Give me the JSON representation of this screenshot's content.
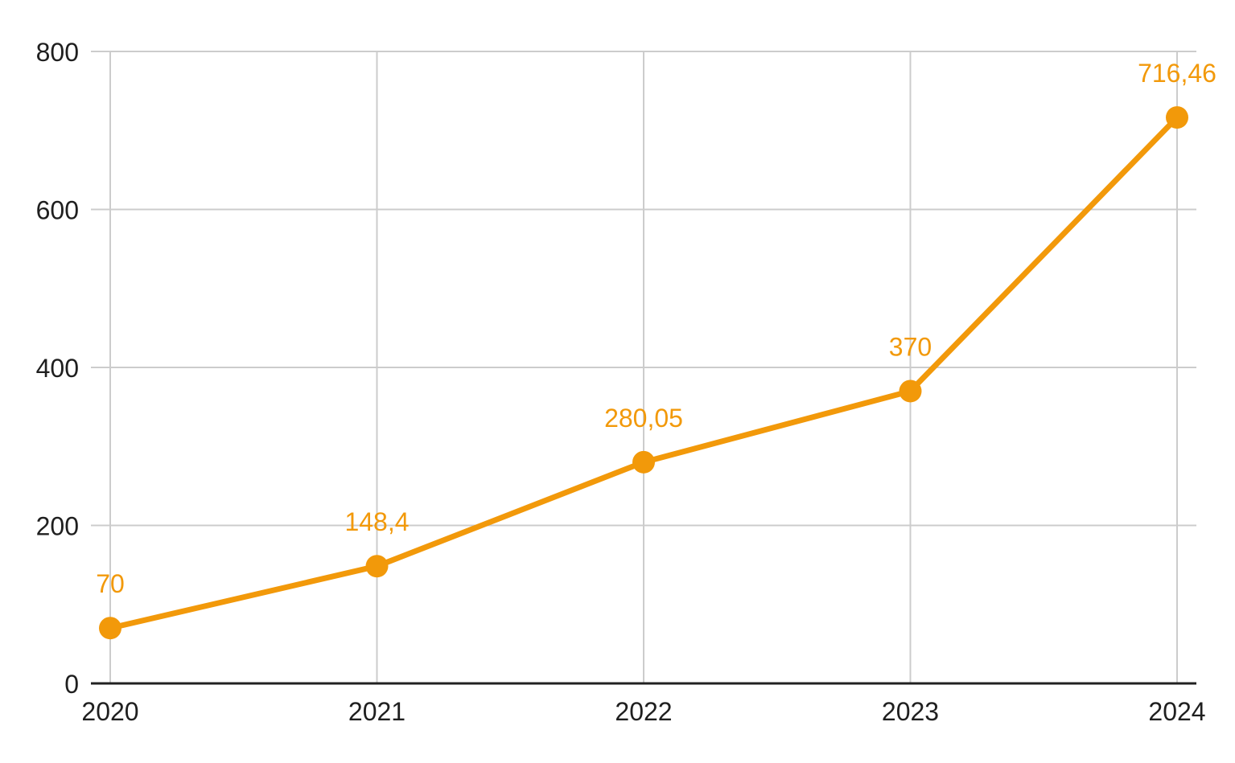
{
  "page": {
    "background": "#FFFFFF"
  },
  "colors": {
    "accent": "#F2990A",
    "grid": "#CCCCCC",
    "axis_line": "#212121",
    "tick_label": "#1F1F1F"
  },
  "chart_data": {
    "type": "line",
    "title": "",
    "xlabel": "",
    "ylabel": "",
    "categories": [
      "2020",
      "2021",
      "2022",
      "2023",
      "2024"
    ],
    "series": [
      {
        "name": "values",
        "values": [
          70,
          148.4,
          280.05,
          370,
          716.46
        ],
        "point_labels": [
          "70",
          "148,4",
          "280,05",
          "370",
          "716,46"
        ]
      }
    ],
    "y_ticks": [
      0,
      200,
      400,
      600,
      800
    ],
    "y_tick_labels": [
      "0",
      "200",
      "400",
      "600",
      "800"
    ],
    "ylim": [
      0,
      800
    ],
    "grid": "on",
    "legend": "none",
    "marker": "circle",
    "decimal_separator": ","
  }
}
